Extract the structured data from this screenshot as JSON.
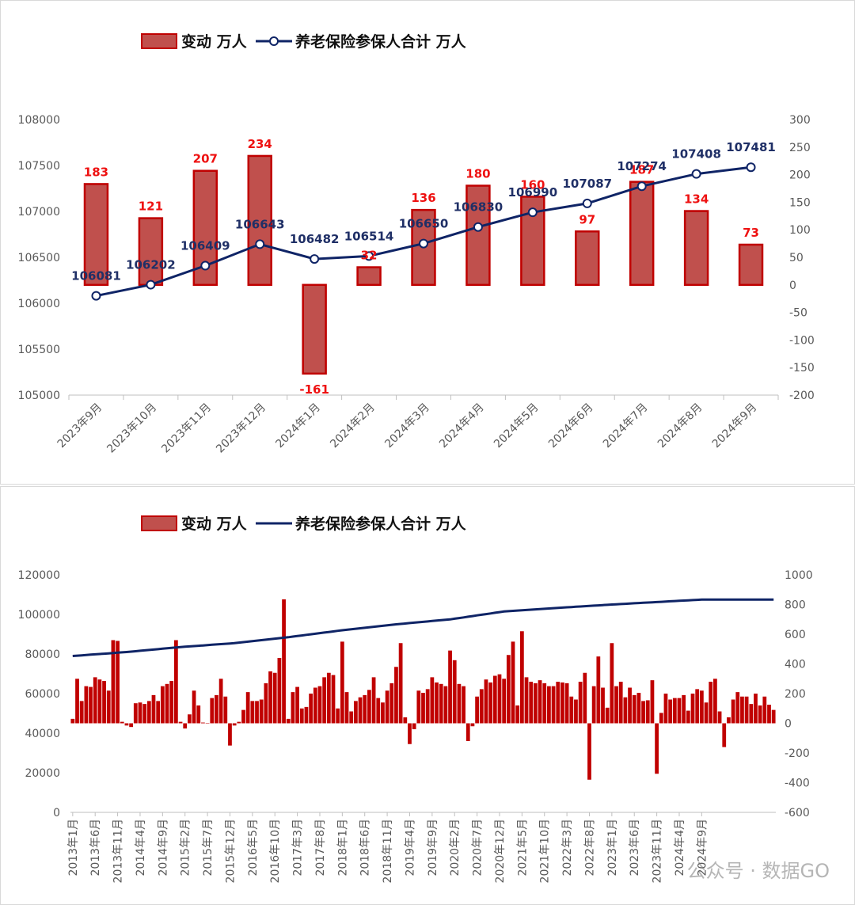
{
  "legend": {
    "bar_label": "变动 万人",
    "line_label": "养老保险参保人合计 万人"
  },
  "colors": {
    "bar_fill": "#c0504d",
    "bar_stroke": "#c00000",
    "line": "#0f2466",
    "bar2": "#c00000"
  },
  "watermark": "公众号 · 数据GO",
  "chart_data": [
    {
      "type": "bar+line",
      "categories": [
        "2023年9月",
        "2023年10月",
        "2023年11月",
        "2023年12月",
        "2024年1月",
        "2024年2月",
        "2024年3月",
        "2024年4月",
        "2024年5月",
        "2024年6月",
        "2024年7月",
        "2024年8月",
        "2024年9月"
      ],
      "series": [
        {
          "name": "变动 万人",
          "type": "bar",
          "axis": "right",
          "values": [
            183,
            121,
            207,
            234,
            -161,
            32,
            136,
            180,
            160,
            97,
            187,
            134,
            73
          ]
        },
        {
          "name": "养老保险参保人合计 万人",
          "type": "line",
          "axis": "left",
          "values": [
            106081,
            106202,
            106409,
            106643,
            106482,
            106514,
            106650,
            106830,
            106990,
            107087,
            107274,
            107408,
            107481
          ]
        }
      ],
      "left_axis": {
        "min": 105000,
        "max": 108000,
        "ticks": [
          "105000",
          "105500",
          "106000",
          "106500",
          "107000",
          "107500",
          "108000"
        ]
      },
      "right_axis": {
        "min": -200,
        "max": 300,
        "ticks": [
          "-200",
          "-150",
          "-100",
          "-50",
          "0",
          "50",
          "100",
          "150",
          "200",
          "250",
          "300"
        ]
      },
      "bar_labels": [
        "183",
        "121",
        "207",
        "234",
        "-161",
        "32",
        "136",
        "180",
        "160",
        "97",
        "187",
        "134",
        "73"
      ],
      "line_labels": [
        "106081",
        "106202",
        "106409",
        "106643",
        "106482",
        "106514",
        "106650",
        "106830",
        "106990",
        "107087",
        "107274",
        "107408",
        "107481"
      ]
    },
    {
      "type": "bar+line",
      "start": "2013年1月",
      "x_tick_labels": [
        "2013年1月",
        "2013年6月",
        "2013年11月",
        "2014年4月",
        "2014年9月",
        "2015年2月",
        "2015年7月",
        "2015年12月",
        "2016年5月",
        "2016年10月",
        "2017年3月",
        "2017年8月",
        "2018年1月",
        "2018年6月",
        "2018年11月",
        "2019年4月",
        "2019年9月",
        "2020年2月",
        "2020年7月",
        "2020年12月",
        "2021年5月",
        "2021年10月",
        "2022年3月",
        "2022年8月",
        "2023年1月",
        "2023年6月",
        "2023年11月",
        "2024年4月",
        "2024年9月"
      ],
      "series": [
        {
          "name": "变动 万人",
          "type": "bar",
          "axis": "right",
          "values": [
            30,
            300,
            150,
            250,
            245,
            310,
            295,
            285,
            220,
            560,
            555,
            10,
            -15,
            -25,
            135,
            140,
            130,
            150,
            190,
            150,
            250,
            265,
            285,
            560,
            10,
            -35,
            60,
            220,
            120,
            5,
            0,
            170,
            190,
            300,
            180,
            -150,
            -15,
            10,
            90,
            210,
            150,
            150,
            160,
            270,
            350,
            340,
            440,
            835,
            30,
            210,
            245,
            100,
            110,
            200,
            240,
            250,
            310,
            340,
            325,
            100,
            550,
            210,
            80,
            150,
            175,
            190,
            225,
            310,
            170,
            140,
            220,
            270,
            380,
            540,
            40,
            -140,
            -40,
            220,
            205,
            230,
            310,
            275,
            265,
            250,
            490,
            425,
            265,
            250,
            -120,
            -20,
            180,
            230,
            295,
            275,
            320,
            330,
            300,
            460,
            550,
            120,
            620,
            310,
            280,
            270,
            290,
            270,
            250,
            250,
            280,
            275,
            270,
            180,
            160,
            280,
            340,
            -380,
            250,
            450,
            240,
            105,
            540,
            250,
            280,
            175,
            240,
            190,
            205,
            150,
            155,
            290,
            -340,
            70,
            200,
            160,
            170,
            170,
            190,
            85,
            200,
            230,
            220,
            140,
            280,
            300,
            80,
            -160,
            40,
            160,
            210,
            180,
            180,
            130,
            200,
            120,
            180,
            125,
            90
          ]
        },
        {
          "name": "养老保险参保人合计 万人",
          "type": "line",
          "axis": "left",
          "anchors": [
            [
              0,
              79000
            ],
            [
              12,
              81000
            ],
            [
              24,
              83500
            ],
            [
              36,
              85500
            ],
            [
              48,
              88500
            ],
            [
              60,
              92000
            ],
            [
              72,
              95000
            ],
            [
              84,
              97500
            ],
            [
              96,
              101500
            ],
            [
              108,
              103300
            ],
            [
              120,
              105000
            ],
            [
              132,
              106500
            ],
            [
              140,
              107481
            ]
          ]
        }
      ],
      "left_axis": {
        "min": 0,
        "max": 120000,
        "ticks": [
          "0",
          "20000",
          "40000",
          "60000",
          "80000",
          "100000",
          "120000"
        ]
      },
      "right_axis": {
        "min": -600,
        "max": 1000,
        "ticks": [
          "-600",
          "-400",
          "-200",
          "0",
          "200",
          "400",
          "600",
          "800",
          "1000"
        ]
      }
    }
  ]
}
